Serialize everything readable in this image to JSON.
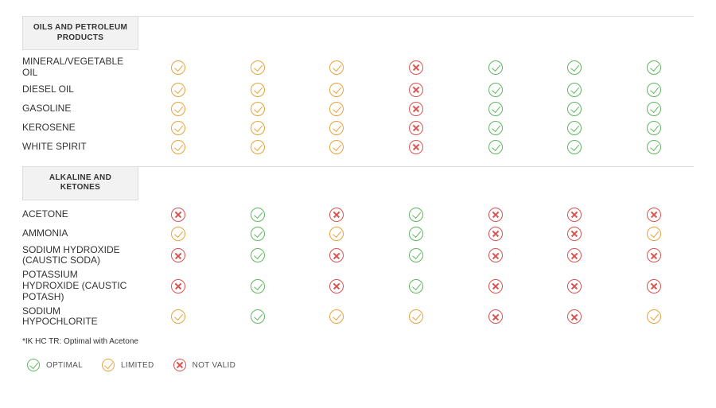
{
  "colors": {
    "optimal": "#5fb760",
    "limited": "#e8a33d",
    "notvalid": "#d9534f",
    "border": "#dddddd",
    "header_bg": "#f2f2f2",
    "text": "#333333"
  },
  "icon_types": {
    "optimal": {
      "shape": "check",
      "color_key": "optimal"
    },
    "limited": {
      "shape": "check",
      "color_key": "limited"
    },
    "notvalid": {
      "shape": "x",
      "color_key": "notvalid"
    }
  },
  "sections": [
    {
      "title": "OILS AND PETROLEUM PRODUCTS",
      "rows": [
        {
          "label": "MINERAL/VEGETABLE OIL",
          "cells": [
            "limited",
            "limited",
            "limited",
            "notvalid",
            "optimal",
            "optimal",
            "optimal"
          ]
        },
        {
          "label": "DIESEL OIL",
          "cells": [
            "limited",
            "limited",
            "limited",
            "notvalid",
            "optimal",
            "optimal",
            "optimal"
          ]
        },
        {
          "label": "GASOLINE",
          "cells": [
            "limited",
            "limited",
            "limited",
            "notvalid",
            "optimal",
            "optimal",
            "optimal"
          ]
        },
        {
          "label": "KEROSENE",
          "cells": [
            "limited",
            "limited",
            "limited",
            "notvalid",
            "optimal",
            "optimal",
            "optimal"
          ]
        },
        {
          "label": "WHITE SPIRIT",
          "cells": [
            "limited",
            "limited",
            "limited",
            "notvalid",
            "optimal",
            "optimal",
            "optimal"
          ]
        }
      ]
    },
    {
      "title": "ALKALINE AND KETONES",
      "footnote": "*IK HC TR: Optimal with Acetone",
      "rows": [
        {
          "label": "ACETONE",
          "cells": [
            "notvalid",
            "optimal",
            "notvalid",
            "optimal",
            "notvalid",
            "notvalid",
            "notvalid"
          ]
        },
        {
          "label": "AMMONIA",
          "cells": [
            "limited",
            "optimal",
            "limited",
            "optimal",
            "notvalid",
            "notvalid",
            "limited"
          ]
        },
        {
          "label": "SODIUM HYDROXIDE (CAUSTIC SODA)",
          "cells": [
            "notvalid",
            "optimal",
            "notvalid",
            "optimal",
            "notvalid",
            "notvalid",
            "notvalid"
          ]
        },
        {
          "label": "POTASSIUM HYDROXIDE (CAUSTIC POTASH)",
          "cells": [
            "notvalid",
            "optimal",
            "notvalid",
            "optimal",
            "notvalid",
            "notvalid",
            "notvalid"
          ]
        },
        {
          "label": "SODIUM HYPOCHLORITE",
          "cells": [
            "limited",
            "optimal",
            "limited",
            "limited",
            "notvalid",
            "notvalid",
            "limited"
          ]
        }
      ]
    }
  ],
  "legend": [
    {
      "type": "optimal",
      "label": "OPTIMAL"
    },
    {
      "type": "limited",
      "label": "LIMITED"
    },
    {
      "type": "notvalid",
      "label": "NOT VALID"
    }
  ]
}
